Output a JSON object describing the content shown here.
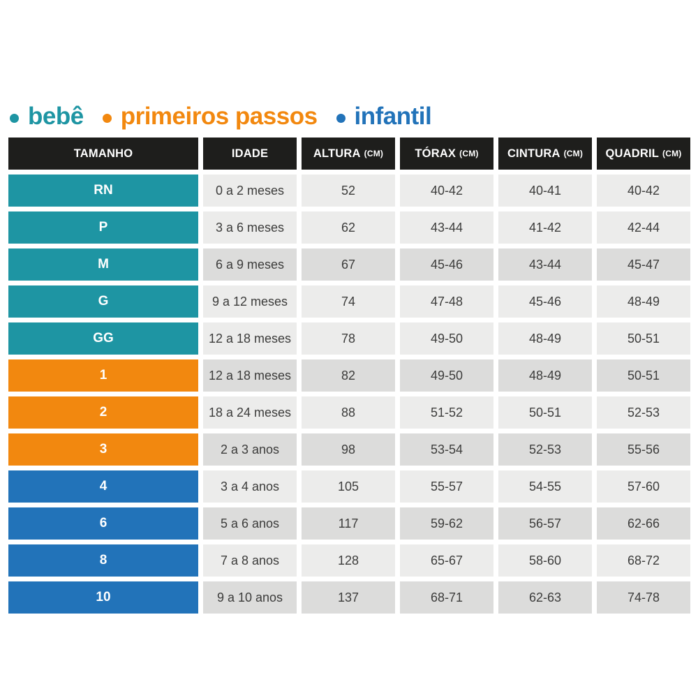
{
  "legend": {
    "items": [
      {
        "label": "bebê",
        "color": "#1e95a3"
      },
      {
        "label": "primeiros passos",
        "color": "#f2880f"
      },
      {
        "label": "infantil",
        "color": "#2273b9"
      }
    ]
  },
  "colors": {
    "teal": "#1e95a3",
    "orange": "#f2880f",
    "blue": "#2273b9",
    "header_bg": "#1e1e1c",
    "row_light": "#ececeb",
    "row_dark": "#dcdcdb",
    "value_text": "#3c3c3b"
  },
  "chart_data": {
    "type": "table",
    "columns": [
      {
        "label": "TAMANHO",
        "unit": ""
      },
      {
        "label": "IDADE",
        "unit": ""
      },
      {
        "label": "ALTURA",
        "unit": "(CM)"
      },
      {
        "label": "TÓRAX",
        "unit": "(CM)"
      },
      {
        "label": "CINTURA",
        "unit": "(CM)"
      },
      {
        "label": "QUADRIL",
        "unit": "(CM)"
      }
    ],
    "rows": [
      {
        "size": "RN",
        "category": "bebê",
        "idade": "0 a 2 meses",
        "altura": "52",
        "torax": "40-42",
        "cintura": "40-41",
        "quadril": "40-42"
      },
      {
        "size": "P",
        "category": "bebê",
        "idade": "3 a 6 meses",
        "altura": "62",
        "torax": "43-44",
        "cintura": "41-42",
        "quadril": "42-44"
      },
      {
        "size": "M",
        "category": "bebê",
        "idade": "6 a 9 meses",
        "altura": "67",
        "torax": "45-46",
        "cintura": "43-44",
        "quadril": "45-47"
      },
      {
        "size": "G",
        "category": "bebê",
        "idade": "9 a 12 meses",
        "altura": "74",
        "torax": "47-48",
        "cintura": "45-46",
        "quadril": "48-49"
      },
      {
        "size": "GG",
        "category": "bebê",
        "idade": "12 a 18 meses",
        "altura": "78",
        "torax": "49-50",
        "cintura": "48-49",
        "quadril": "50-51"
      },
      {
        "size": "1",
        "category": "primeiros passos",
        "idade": "12 a 18 meses",
        "altura": "82",
        "torax": "49-50",
        "cintura": "48-49",
        "quadril": "50-51"
      },
      {
        "size": "2",
        "category": "primeiros passos",
        "idade": "18 a 24 meses",
        "altura": "88",
        "torax": "51-52",
        "cintura": "50-51",
        "quadril": "52-53"
      },
      {
        "size": "3",
        "category": "primeiros passos",
        "idade": "2 a 3 anos",
        "altura": "98",
        "torax": "53-54",
        "cintura": "52-53",
        "quadril": "55-56"
      },
      {
        "size": "4",
        "category": "infantil",
        "idade": "3 a 4 anos",
        "altura": "105",
        "torax": "55-57",
        "cintura": "54-55",
        "quadril": "57-60"
      },
      {
        "size": "6",
        "category": "infantil",
        "idade": "5 a 6 anos",
        "altura": "117",
        "torax": "59-62",
        "cintura": "56-57",
        "quadril": "62-66"
      },
      {
        "size": "8",
        "category": "infantil",
        "idade": "7 a 8 anos",
        "altura": "128",
        "torax": "65-67",
        "cintura": "58-60",
        "quadril": "68-72"
      },
      {
        "size": "10",
        "category": "infantil",
        "idade": "9 a 10 anos",
        "altura": "137",
        "torax": "68-71",
        "cintura": "62-63",
        "quadril": "74-78"
      }
    ]
  }
}
